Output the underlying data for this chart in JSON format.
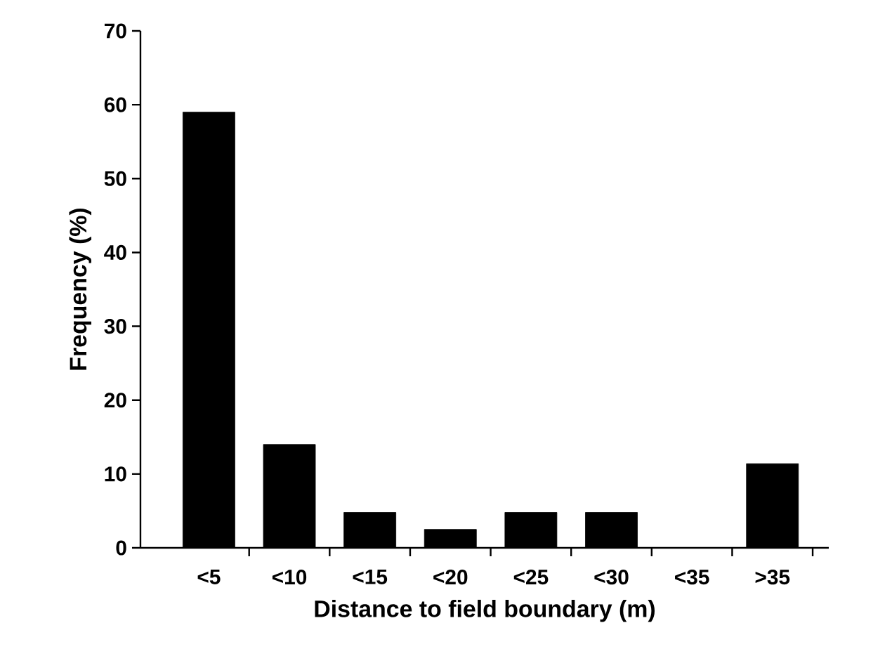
{
  "chart_data": {
    "type": "bar",
    "xlabel": "Distance to field boundary (m)",
    "ylabel": "Frequency (%)",
    "categories": [
      "<5",
      "<10",
      "<15",
      "<20",
      "<25",
      "<30",
      "<35",
      ">35"
    ],
    "values": [
      59,
      14,
      4.8,
      2.5,
      4.8,
      4.8,
      0,
      11.4
    ],
    "color": "#000000",
    "ylim": [
      0,
      70
    ],
    "yticks": [
      0,
      10,
      20,
      30,
      40,
      50,
      60,
      70
    ],
    "grid": false
  }
}
